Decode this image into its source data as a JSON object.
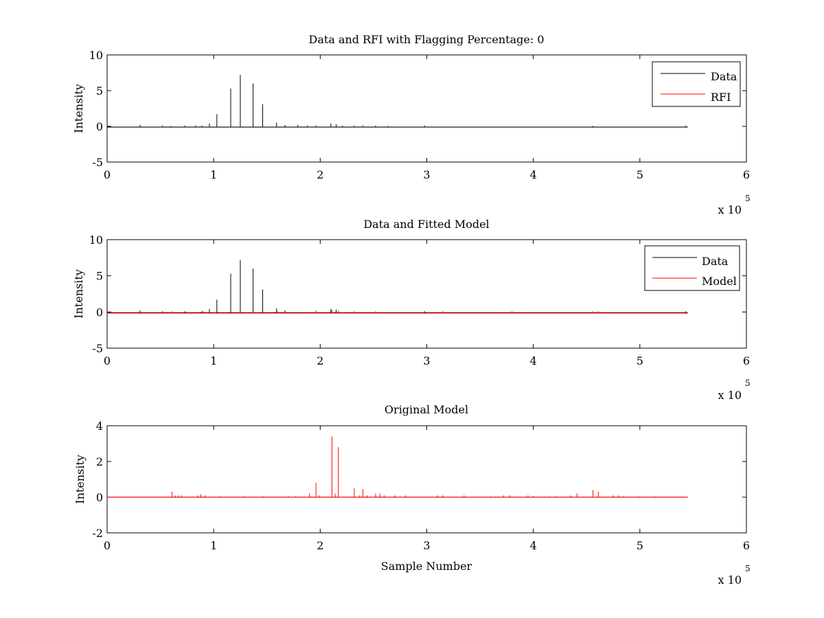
{
  "chart_data": [
    {
      "type": "line",
      "title": "Data and RFI with Flagging Percentage: 0",
      "xlabel": "",
      "ylabel": "Intensity",
      "xlim": [
        0,
        600000
      ],
      "ylim": [
        -5,
        10
      ],
      "xticks": [
        "0",
        "1",
        "2",
        "3",
        "4",
        "5",
        "6"
      ],
      "yticks": [
        "-5",
        "0",
        "5",
        "10"
      ],
      "x_exponent": {
        "base": "x 10",
        "power": "5"
      },
      "legend": {
        "placement": "top-right",
        "entries": [
          {
            "name": "Data",
            "color": "#000000"
          },
          {
            "name": "RFI",
            "color": "#ff0000"
          }
        ]
      },
      "series": [
        {
          "name": "Data",
          "color": "#000000",
          "baseline": -0.1,
          "x_end": 545000,
          "spikes": [
            [
              31000,
              0.2
            ],
            [
              52000,
              0.1
            ],
            [
              60000,
              0.05
            ],
            [
              73000,
              0.1
            ],
            [
              83000,
              0.1
            ],
            [
              89000,
              0.1
            ],
            [
              96000,
              0.4
            ],
            [
              103000,
              1.7
            ],
            [
              116000,
              5.3
            ],
            [
              125000,
              7.2
            ],
            [
              137000,
              6.0
            ],
            [
              146000,
              3.1
            ],
            [
              159000,
              0.5
            ],
            [
              167000,
              0.2
            ],
            [
              179000,
              0.2
            ],
            [
              188000,
              0.1
            ],
            [
              196000,
              0.1
            ],
            [
              210000,
              0.4
            ],
            [
              215000,
              0.3
            ],
            [
              221000,
              0.1
            ],
            [
              232000,
              0.1
            ],
            [
              240000,
              0.1
            ],
            [
              252000,
              0.1
            ],
            [
              264000,
              0.05
            ],
            [
              298000,
              0.1
            ],
            [
              456000,
              0.05
            ],
            [
              543000,
              0.1
            ]
          ]
        },
        {
          "name": "RFI",
          "color": "#ff0000",
          "spikes": []
        }
      ]
    },
    {
      "type": "line",
      "title": "Data and Fitted Model",
      "xlabel": "",
      "ylabel": "Intensity",
      "xlim": [
        0,
        600000
      ],
      "ylim": [
        -5,
        10
      ],
      "xticks": [
        "0",
        "1",
        "2",
        "3",
        "4",
        "5",
        "6"
      ],
      "yticks": [
        "-5",
        "0",
        "5",
        "10"
      ],
      "x_exponent": {
        "base": "x 10",
        "power": "5"
      },
      "legend": {
        "placement": "top-right",
        "entries": [
          {
            "name": "Data",
            "color": "#000000"
          },
          {
            "name": "Model",
            "color": "#ff0000"
          }
        ]
      },
      "series": [
        {
          "name": "Data",
          "color": "#000000",
          "baseline": -0.1,
          "x_end": 545000,
          "spikes": [
            [
              31000,
              0.2
            ],
            [
              52000,
              0.1
            ],
            [
              73000,
              0.1
            ],
            [
              89000,
              0.1
            ],
            [
              96000,
              0.4
            ],
            [
              103000,
              1.7
            ],
            [
              116000,
              5.3
            ],
            [
              125000,
              7.2
            ],
            [
              137000,
              6.0
            ],
            [
              146000,
              3.1
            ],
            [
              159000,
              0.5
            ],
            [
              167000,
              0.2
            ],
            [
              210000,
              0.4
            ],
            [
              215000,
              0.3
            ],
            [
              298000,
              0.1
            ],
            [
              543000,
              0.1
            ]
          ]
        },
        {
          "name": "Model",
          "color": "#ff0000",
          "baseline": -0.15,
          "x_end": 545000,
          "spikes": [
            [
              61000,
              0.1
            ],
            [
              90000,
              0.1
            ],
            [
              160000,
              0.1
            ],
            [
              196000,
              0.2
            ],
            [
              211000,
              0.3
            ],
            [
              217000,
              0.2
            ],
            [
              232000,
              0.1
            ],
            [
              252000,
              0.1
            ],
            [
              315000,
              0.1
            ],
            [
              380000,
              0.1
            ],
            [
              456000,
              0.1
            ],
            [
              461000,
              0.1
            ]
          ]
        }
      ]
    },
    {
      "type": "line",
      "title": "Original Model",
      "xlabel": "Sample Number",
      "ylabel": "Intensity",
      "xlim": [
        0,
        600000
      ],
      "ylim": [
        -2,
        4
      ],
      "xticks": [
        "0",
        "1",
        "2",
        "3",
        "4",
        "5",
        "6"
      ],
      "yticks": [
        "-2",
        "0",
        "2",
        "4"
      ],
      "x_exponent": {
        "base": "x 10",
        "power": "5"
      },
      "series": [
        {
          "name": "",
          "color": "#ff0000",
          "baseline": 0,
          "x_end": 545000,
          "spikes": [
            [
              61000,
              0.3
            ],
            [
              64000,
              0.1
            ],
            [
              67000,
              0.1
            ],
            [
              70000,
              0.1
            ],
            [
              85000,
              0.1
            ],
            [
              88000,
              0.15
            ],
            [
              92000,
              0.1
            ],
            [
              106000,
              0.05
            ],
            [
              128000,
              0.05
            ],
            [
              147000,
              0.05
            ],
            [
              170000,
              0.05
            ],
            [
              177000,
              0.05
            ],
            [
              190000,
              0.2
            ],
            [
              196000,
              0.8
            ],
            [
              199000,
              0.1
            ],
            [
              211000,
              3.4
            ],
            [
              214000,
              0.2
            ],
            [
              217000,
              2.8
            ],
            [
              232000,
              0.5
            ],
            [
              237000,
              0.1
            ],
            [
              240000,
              0.45
            ],
            [
              244000,
              0.1
            ],
            [
              252000,
              0.2
            ],
            [
              256000,
              0.2
            ],
            [
              260000,
              0.1
            ],
            [
              270000,
              0.1
            ],
            [
              280000,
              0.1
            ],
            [
              310000,
              0.1
            ],
            [
              315000,
              0.1
            ],
            [
              335000,
              0.1
            ],
            [
              350000,
              0.05
            ],
            [
              360000,
              0.05
            ],
            [
              372000,
              0.1
            ],
            [
              378000,
              0.1
            ],
            [
              395000,
              0.1
            ],
            [
              400000,
              0.05
            ],
            [
              415000,
              0.05
            ],
            [
              422000,
              0.05
            ],
            [
              435000,
              0.1
            ],
            [
              441000,
              0.2
            ],
            [
              456000,
              0.4
            ],
            [
              461000,
              0.3
            ],
            [
              475000,
              0.1
            ],
            [
              480000,
              0.1
            ],
            [
              485000,
              0.05
            ],
            [
              500000,
              0.05
            ],
            [
              515000,
              0.05
            ]
          ]
        }
      ]
    }
  ]
}
